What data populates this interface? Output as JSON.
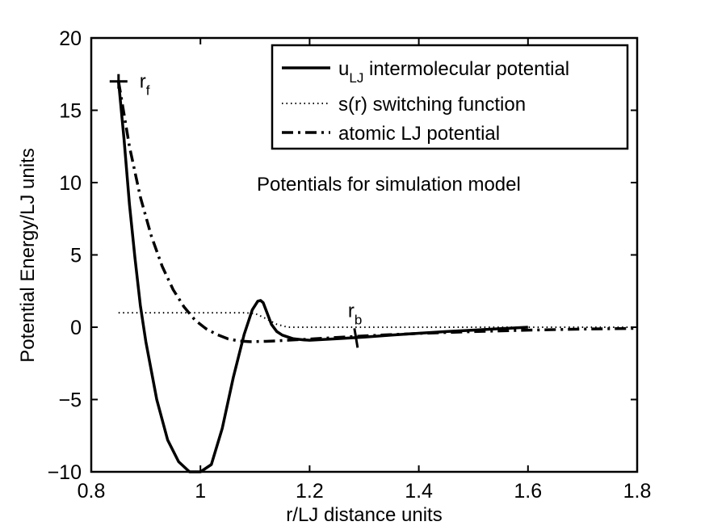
{
  "chart_data": {
    "type": "line",
    "title": "",
    "annotation": "Potentials for simulation model",
    "xlabel": "r/LJ distance units",
    "ylabel": "Potential Energy/LJ units",
    "xlim": [
      0.8,
      1.8
    ],
    "ylim": [
      -10,
      20
    ],
    "xticks": [
      0.8,
      1,
      1.2,
      1.4,
      1.6,
      1.8
    ],
    "xtick_labels": [
      "0.8",
      "1",
      "1.2",
      "1.4",
      "1.6",
      "1.8"
    ],
    "yticks": [
      -10,
      -5,
      0,
      5,
      10,
      15,
      20
    ],
    "ytick_labels": [
      "−10",
      "−5",
      "0",
      "5",
      "10",
      "15",
      "20"
    ],
    "grid": false,
    "legend_placement": "top-right",
    "markers": [
      {
        "base": "r",
        "sub": "f",
        "x": 0.85,
        "y": 17.0
      },
      {
        "base": "r",
        "sub": "b",
        "x": 1.285,
        "y": -0.75
      }
    ],
    "series": [
      {
        "name_base": "u",
        "name_sub": "LJ",
        "name_rest": " intermolecular potential",
        "style": "solid",
        "x": [
          0.85,
          0.86,
          0.87,
          0.88,
          0.89,
          0.9,
          0.92,
          0.94,
          0.96,
          0.98,
          1.0,
          1.02,
          1.04,
          1.06,
          1.08,
          1.095,
          1.105,
          1.11,
          1.115,
          1.12,
          1.13,
          1.14,
          1.15,
          1.17,
          1.19,
          1.2,
          1.25,
          1.3,
          1.35,
          1.4,
          1.45,
          1.5,
          1.55,
          1.6
        ],
        "y": [
          17.0,
          13.0,
          8.5,
          4.8,
          1.5,
          -1.0,
          -5.0,
          -7.8,
          -9.3,
          -10.0,
          -10.0,
          -9.5,
          -7.0,
          -3.5,
          -0.5,
          1.2,
          1.8,
          1.85,
          1.7,
          1.2,
          0.2,
          -0.3,
          -0.55,
          -0.8,
          -0.88,
          -0.9,
          -0.8,
          -0.68,
          -0.55,
          -0.42,
          -0.3,
          -0.2,
          -0.1,
          0.0
        ]
      },
      {
        "name": "s(r) switching function",
        "style": "dotted",
        "x": [
          0.85,
          1.0,
          1.08,
          1.1,
          1.12,
          1.14,
          1.16,
          1.8
        ],
        "y": [
          1.0,
          1.0,
          1.0,
          0.95,
          0.6,
          0.2,
          0.0,
          0.0
        ]
      },
      {
        "name": "atomic LJ potential",
        "style": "dashdot",
        "x": [
          0.85,
          0.87,
          0.89,
          0.91,
          0.93,
          0.95,
          0.97,
          0.99,
          1.01,
          1.03,
          1.05,
          1.07,
          1.09,
          1.12,
          1.15,
          1.2,
          1.3,
          1.4,
          1.5,
          1.6,
          1.7,
          1.8
        ],
        "y": [
          17.0,
          12.5,
          9.0,
          6.3,
          4.2,
          2.6,
          1.4,
          0.5,
          -0.1,
          -0.5,
          -0.8,
          -0.95,
          -1.0,
          -0.98,
          -0.92,
          -0.82,
          -0.6,
          -0.43,
          -0.3,
          -0.2,
          -0.13,
          -0.08
        ]
      }
    ]
  }
}
